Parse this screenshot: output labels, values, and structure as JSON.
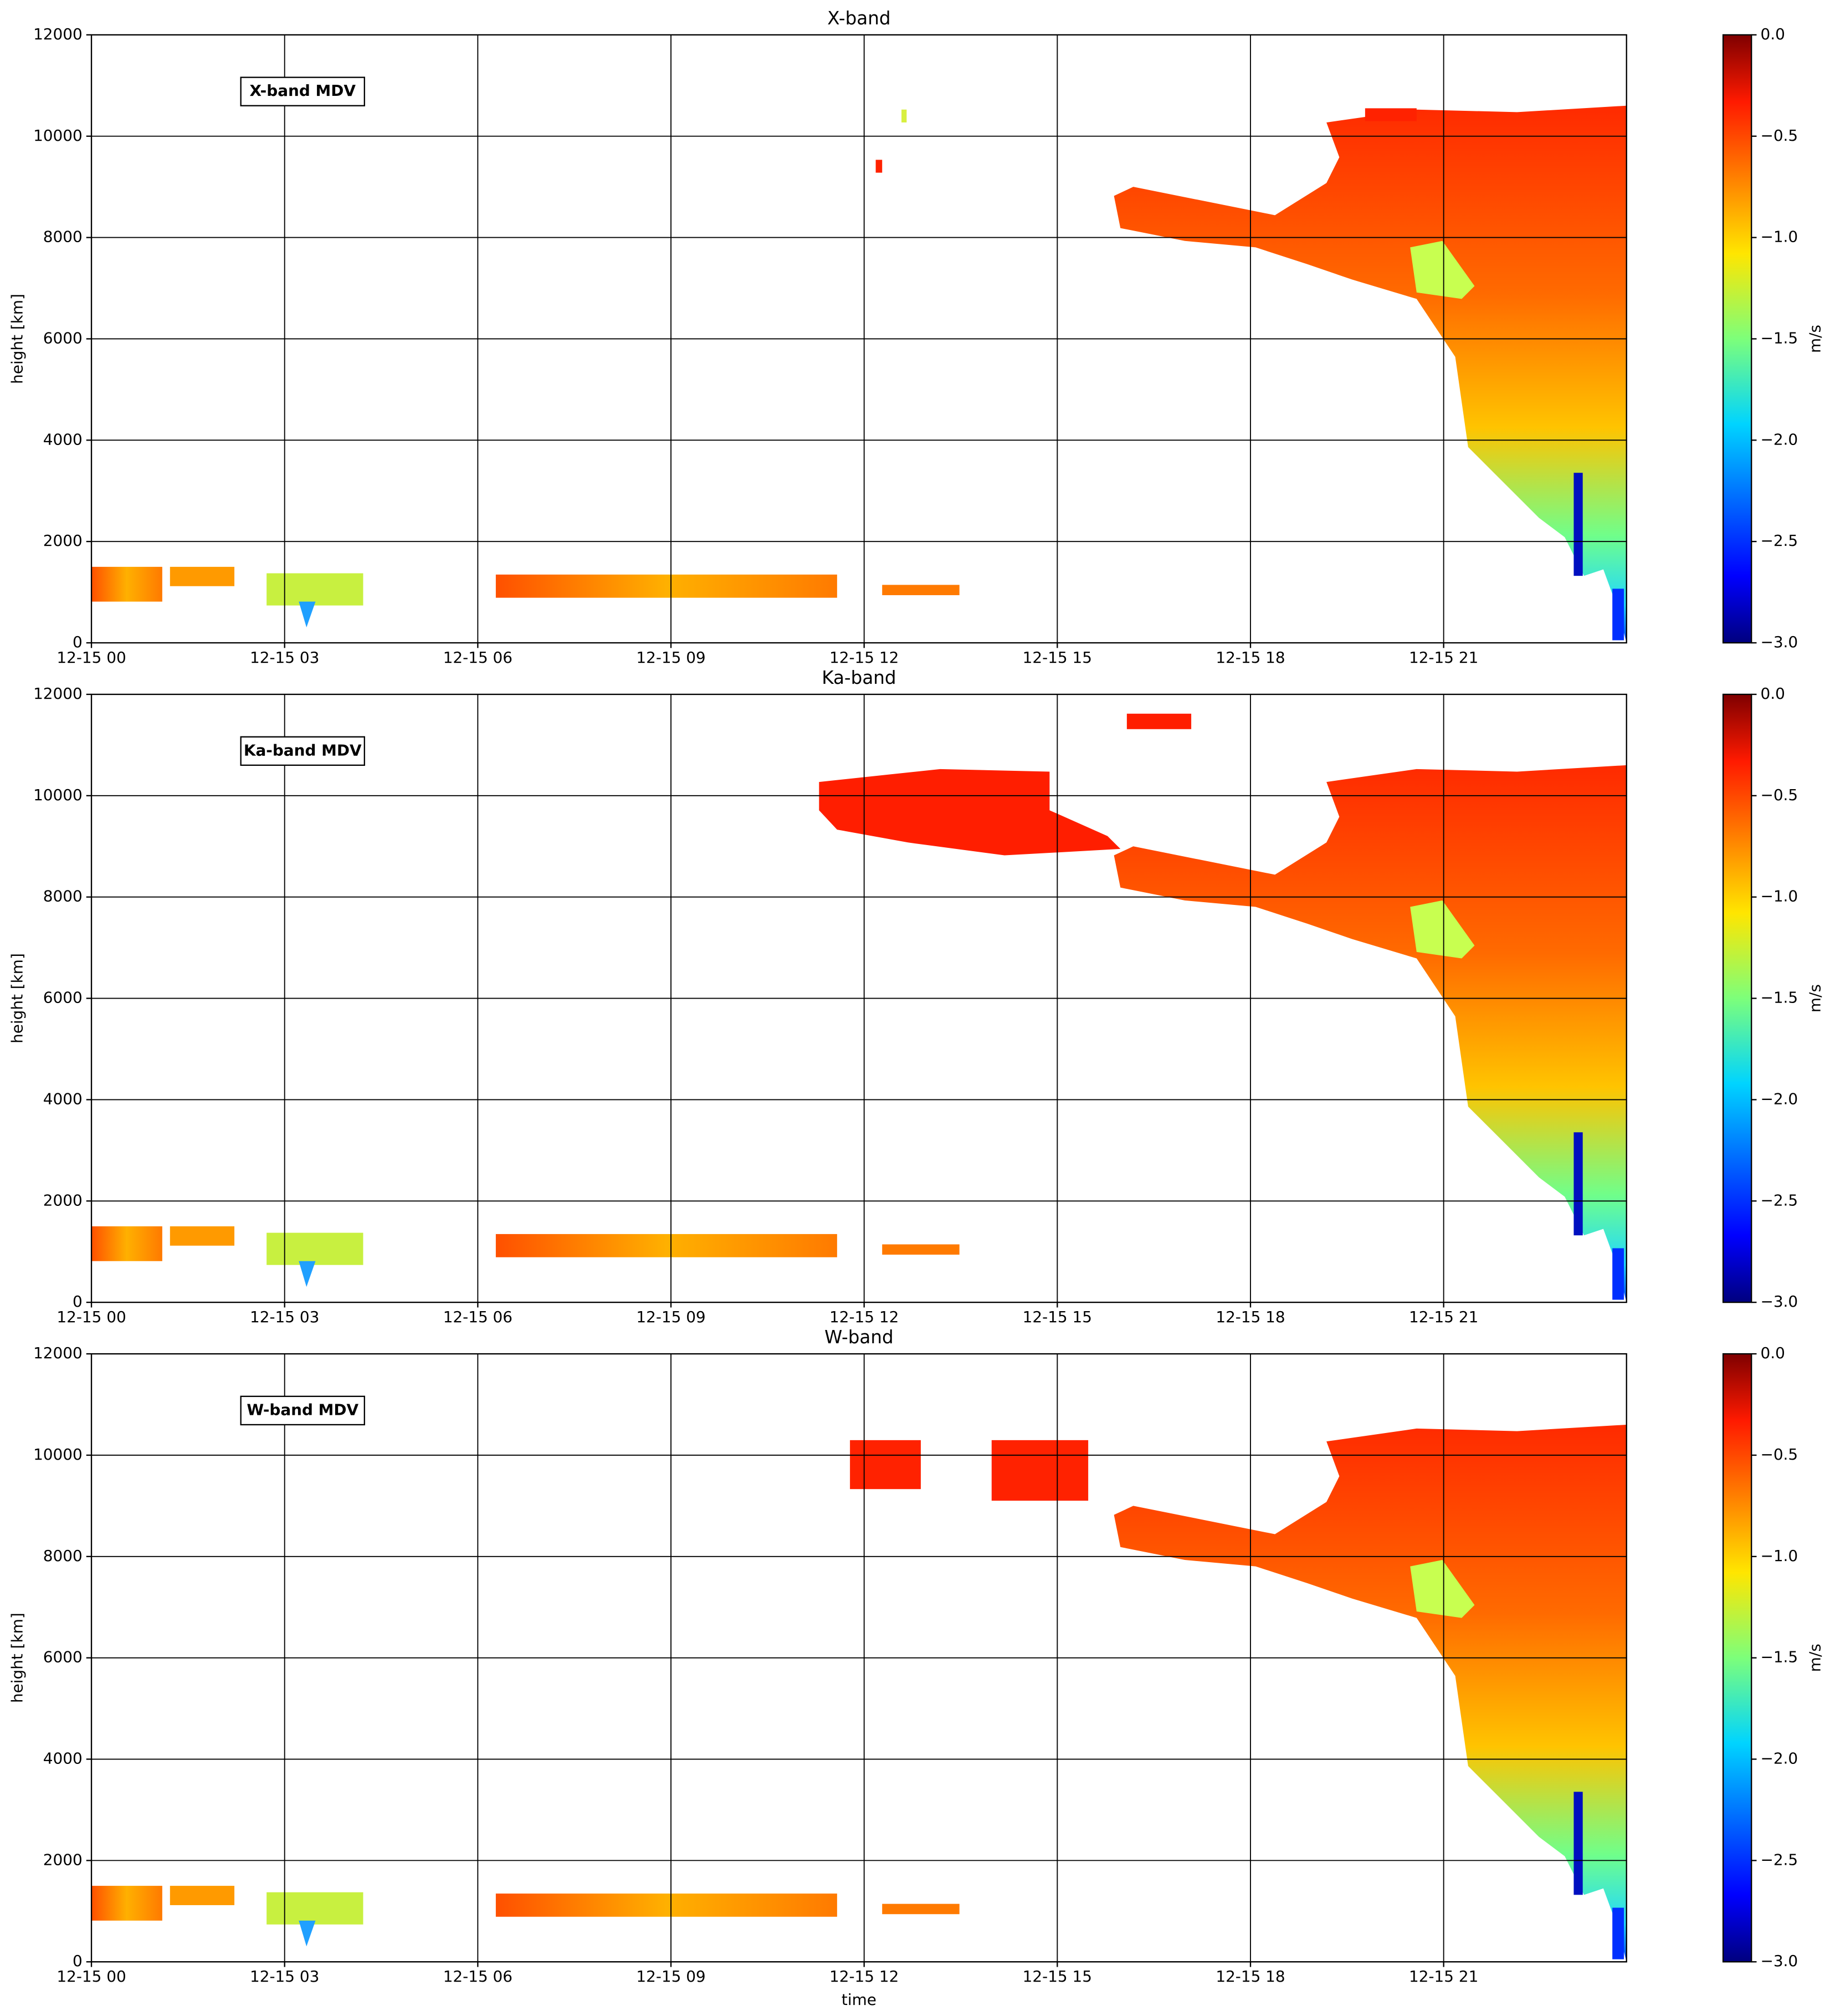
{
  "chart_data": [
    {
      "type": "heatmap",
      "title": "X-band",
      "annotation": "X-band MDV",
      "ylabel": "height [km]",
      "colorbar_label": "m/s",
      "xlim": [
        0,
        23.84
      ],
      "xticks": [
        {
          "value": 0,
          "label": "12-15 00"
        },
        {
          "value": 3,
          "label": "12-15 03"
        },
        {
          "value": 6,
          "label": "12-15 06"
        },
        {
          "value": 9,
          "label": "12-15 09"
        },
        {
          "value": 12,
          "label": "12-15 12"
        },
        {
          "value": 15,
          "label": "12-15 15"
        },
        {
          "value": 18,
          "label": "12-15 18"
        },
        {
          "value": 21,
          "label": "12-15 21"
        }
      ],
      "ylim": [
        0,
        12000
      ],
      "yticks": [
        0,
        2000,
        4000,
        6000,
        8000,
        10000,
        12000
      ],
      "clim": [
        -3,
        0
      ],
      "cticks": [
        {
          "value": -3,
          "label": "−3.0"
        },
        {
          "value": -2.5,
          "label": "−2.5"
        },
        {
          "value": -2,
          "label": "−2.0"
        },
        {
          "value": -1.5,
          "label": "−1.5"
        },
        {
          "value": -1,
          "label": "−1.0"
        },
        {
          "value": -0.5,
          "label": "−0.5"
        },
        {
          "value": 0,
          "label": "0.0"
        }
      ],
      "colormap": "jet",
      "grid": true
    },
    {
      "type": "heatmap",
      "title": "Ka-band",
      "annotation": "Ka-band MDV",
      "ylabel": "height [km]",
      "colorbar_label": "m/s",
      "xlim": [
        0,
        23.84
      ],
      "xticks": [
        {
          "value": 0,
          "label": "12-15 00"
        },
        {
          "value": 3,
          "label": "12-15 03"
        },
        {
          "value": 6,
          "label": "12-15 06"
        },
        {
          "value": 9,
          "label": "12-15 09"
        },
        {
          "value": 12,
          "label": "12-15 12"
        },
        {
          "value": 15,
          "label": "12-15 15"
        },
        {
          "value": 18,
          "label": "12-15 18"
        },
        {
          "value": 21,
          "label": "12-15 21"
        }
      ],
      "ylim": [
        0,
        12000
      ],
      "yticks": [
        0,
        2000,
        4000,
        6000,
        8000,
        10000,
        12000
      ],
      "clim": [
        -3,
        0
      ],
      "cticks": [
        {
          "value": -3,
          "label": "−3.0"
        },
        {
          "value": -2.5,
          "label": "−2.5"
        },
        {
          "value": -2,
          "label": "−2.0"
        },
        {
          "value": -1.5,
          "label": "−1.5"
        },
        {
          "value": -1,
          "label": "−1.0"
        },
        {
          "value": -0.5,
          "label": "−0.5"
        },
        {
          "value": 0,
          "label": "0.0"
        }
      ],
      "colormap": "jet",
      "grid": true
    },
    {
      "type": "heatmap",
      "title": "W-band",
      "annotation": "W-band MDV",
      "ylabel": "height [km]",
      "xlabel": "time",
      "colorbar_label": "m/s",
      "xlim": [
        0,
        23.84
      ],
      "xticks": [
        {
          "value": 0,
          "label": "12-15 00"
        },
        {
          "value": 3,
          "label": "12-15 03"
        },
        {
          "value": 6,
          "label": "12-15 06"
        },
        {
          "value": 9,
          "label": "12-15 09"
        },
        {
          "value": 12,
          "label": "12-15 12"
        },
        {
          "value": 15,
          "label": "12-15 15"
        },
        {
          "value": 18,
          "label": "12-15 18"
        },
        {
          "value": 21,
          "label": "12-15 21"
        }
      ],
      "ylim": [
        0,
        12000
      ],
      "yticks": [
        0,
        2000,
        4000,
        6000,
        8000,
        10000,
        12000
      ],
      "clim": [
        -3,
        0
      ],
      "cticks": [
        {
          "value": -3,
          "label": "−3.0"
        },
        {
          "value": -2.5,
          "label": "−2.5"
        },
        {
          "value": -2,
          "label": "−2.0"
        },
        {
          "value": -1.5,
          "label": "−1.5"
        },
        {
          "value": -1,
          "label": "−1.0"
        },
        {
          "value": -0.5,
          "label": "−0.5"
        },
        {
          "value": 0,
          "label": "0.0"
        }
      ],
      "colormap": "jet",
      "grid": true
    }
  ]
}
